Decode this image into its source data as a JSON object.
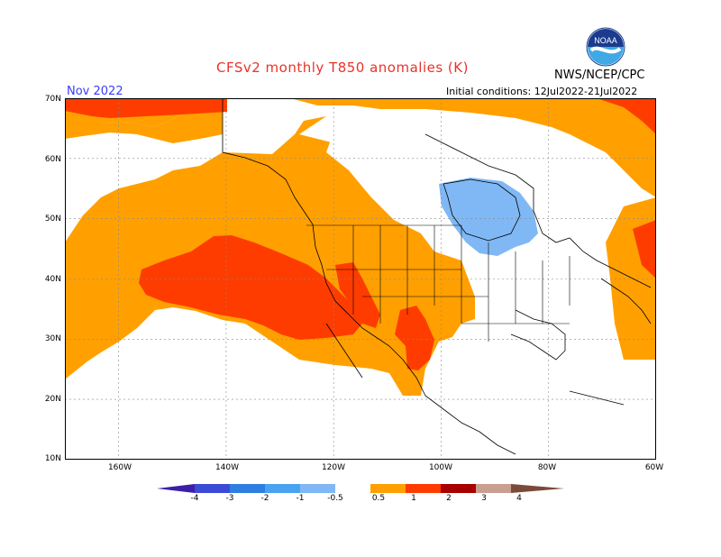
{
  "header": {
    "title": "CFSv2 monthly T850 anomalies (K)",
    "month": "Nov 2022",
    "agency": "NWS/NCEP/CPC",
    "initial_conditions": "Initial conditions: 12Jul2022-21Jul2022",
    "logo_text": "NOAA"
  },
  "axes": {
    "lat_labels": [
      "70N",
      "60N",
      "50N",
      "40N",
      "30N",
      "20N",
      "10N"
    ],
    "lon_labels": [
      "160W",
      "140W",
      "120W",
      "100W",
      "80W",
      "60W"
    ]
  },
  "colorbar": {
    "labels": [
      "-4",
      "-3",
      "-2",
      "-1",
      "-0.5",
      "0.5",
      "1",
      "2",
      "3",
      "4"
    ],
    "colors": [
      "#3b1fa8",
      "#3c4bd6",
      "#2f7fe0",
      "#4aa3f0",
      "#80b8f5",
      "#ffffff",
      "#ffa000",
      "#ff3c00",
      "#a80000",
      "#c9a090",
      "#7a4a3a"
    ]
  },
  "map_data": {
    "extent": {
      "lon": [
        -170,
        -60
      ],
      "lat": [
        10,
        70
      ]
    },
    "anomaly_regions": [
      {
        "name": "north-pacific-positive-0.5-1",
        "level": "0.5 to 1",
        "color": "#ffa000"
      },
      {
        "name": "east-pacific-positive-1-2",
        "level": "1 to 2",
        "color": "#ff3c00"
      },
      {
        "name": "hudson-bay-negative-0.5-1",
        "level": "-1 to -0.5",
        "color": "#80b8f5"
      },
      {
        "name": "arctic-positive-1-2",
        "level": "1 to 2",
        "color": "#ff3c00"
      },
      {
        "name": "northwest-atlantic-positive-0.5-1",
        "level": "0.5 to 1",
        "color": "#ffa000"
      }
    ]
  }
}
